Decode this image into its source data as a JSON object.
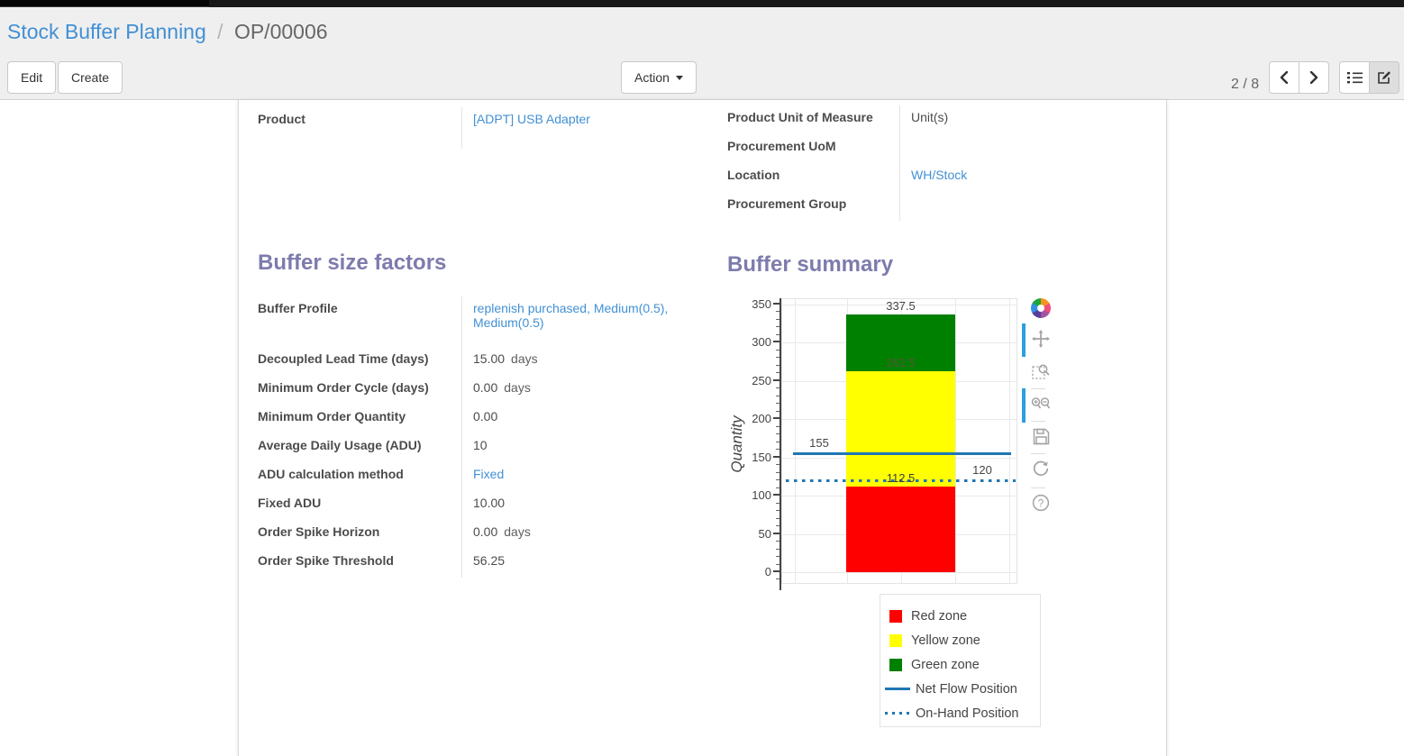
{
  "header": {
    "breadcrumb": {
      "parent": "Stock Buffer Planning",
      "separator": "/",
      "current": "OP/00006"
    },
    "buttons": {
      "edit": "Edit",
      "create": "Create",
      "action": "Action"
    },
    "pager": {
      "text": "2 / 8"
    }
  },
  "form": {
    "product": {
      "label": "Product",
      "value": "[ADPT] USB Adapter"
    },
    "right_fields": [
      {
        "label": "Product Unit of Measure",
        "value": "Unit(s)",
        "link": false
      },
      {
        "label": "Procurement UoM",
        "value": "",
        "link": false
      },
      {
        "label": "Location",
        "value": "WH/Stock",
        "link": true
      },
      {
        "label": "Procurement Group",
        "value": "",
        "link": false
      }
    ],
    "sections": {
      "factors_title": "Buffer size factors",
      "summary_title": "Buffer summary"
    },
    "factor_fields": [
      {
        "label": "Buffer Profile",
        "value": "replenish purchased, Medium(0.5), Medium(0.5)",
        "suffix": "",
        "link": true,
        "tall": true
      },
      {
        "label": "Decoupled Lead Time (days)",
        "value": "15.00",
        "suffix": "days",
        "link": false
      },
      {
        "label": "Minimum Order Cycle (days)",
        "value": "0.00",
        "suffix": "days",
        "link": false
      },
      {
        "label": "Minimum Order Quantity",
        "value": "0.00",
        "suffix": "",
        "link": false
      },
      {
        "label": "Average Daily Usage (ADU)",
        "value": "10",
        "suffix": "",
        "link": false
      },
      {
        "label": "ADU calculation method",
        "value": "Fixed",
        "suffix": "",
        "link": true
      },
      {
        "label": "Fixed ADU",
        "value": "10.00",
        "suffix": "",
        "link": false
      },
      {
        "label": "Order Spike Horizon",
        "value": "0.00",
        "suffix": "days",
        "link": false
      },
      {
        "label": "Order Spike Threshold",
        "value": "56.25",
        "suffix": "",
        "link": false
      }
    ]
  },
  "chart_data": {
    "type": "bar",
    "title": "Buffer summary",
    "ylabel": "Quantity",
    "xlabel": "",
    "ylim": [
      0,
      350
    ],
    "yticks": [
      0,
      50,
      100,
      150,
      200,
      250,
      300,
      350
    ],
    "minor_tick_step": 10,
    "grid": true,
    "zones": [
      {
        "name": "Red zone",
        "color": "#ff0000",
        "from": 0,
        "to": 112.5
      },
      {
        "name": "Yellow zone",
        "color": "#ffff00",
        "from": 112.5,
        "to": 262.5
      },
      {
        "name": "Green zone",
        "color": "#008000",
        "from": 262.5,
        "to": 337.5
      }
    ],
    "zone_labels": [
      {
        "text": "337.5",
        "value": 337.5,
        "color": "#444444"
      },
      {
        "text": "262.5",
        "value": 262.5,
        "color": "#5a5438"
      },
      {
        "text": "112.5",
        "value": 112.5,
        "color": "#3f3e35"
      }
    ],
    "lines": [
      {
        "name": "Net Flow Position",
        "label": "155",
        "value": 155,
        "style": "solid",
        "color": "#1f77b4",
        "label_side": "left"
      },
      {
        "name": "On-Hand Position",
        "label": "120",
        "value": 120,
        "style": "dotted",
        "color": "#1f77b4",
        "label_side": "right"
      }
    ],
    "legend": [
      {
        "label": "Red zone",
        "swatch": "square",
        "color": "#ff0000"
      },
      {
        "label": "Yellow zone",
        "swatch": "square",
        "color": "#ffff00"
      },
      {
        "label": "Green zone",
        "swatch": "square",
        "color": "#008000"
      },
      {
        "label": "Net Flow Position",
        "swatch": "line",
        "color": "#1f77b4"
      },
      {
        "label": "On-Hand Position",
        "swatch": "dotted-line",
        "color": "#1f77b4"
      }
    ],
    "legend_position": "below-right",
    "toolbar_icons": [
      "plotly-logo",
      "pan",
      "box-zoom",
      "zoom-in-out",
      "save",
      "reset-axes",
      "help"
    ]
  },
  "colors": {
    "heading": "#7d7bad",
    "link": "#4190d4",
    "net_flow_blue": "#1f77b4",
    "modebar_active_bar": "#2b9fe0"
  }
}
